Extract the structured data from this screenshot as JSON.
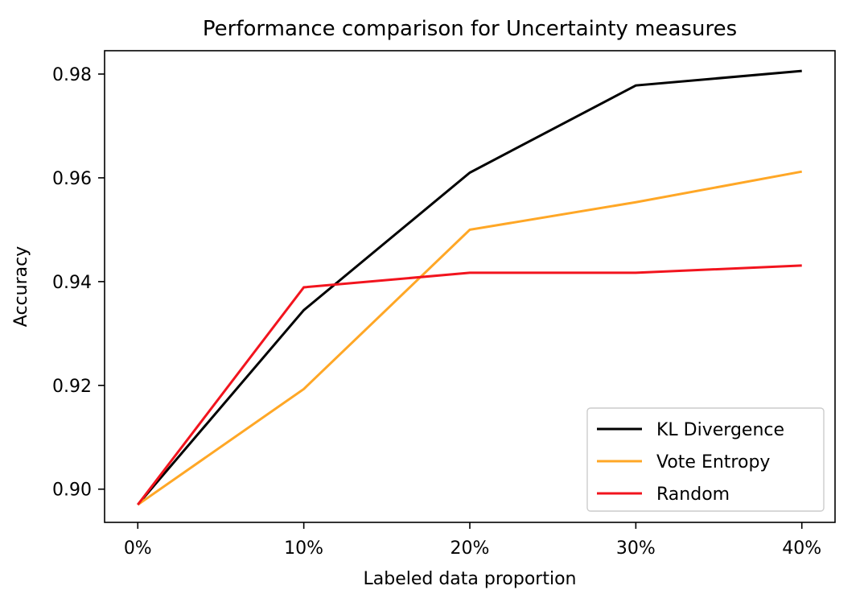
{
  "chart_data": {
    "type": "line",
    "title": "Performance comparison for Uncertainty measures",
    "xlabel": "Labeled data proportion",
    "ylabel": "Accuracy",
    "x": [
      "0%",
      "10%",
      "20%",
      "30%",
      "40%"
    ],
    "x_values": [
      0,
      10,
      20,
      30,
      40
    ],
    "xlim": [
      -2,
      42
    ],
    "ylim": [
      0.8936,
      0.9845
    ],
    "yticks": [
      0.9,
      0.92,
      0.94,
      0.96,
      0.98
    ],
    "ytick_labels": [
      "0.90",
      "0.92",
      "0.94",
      "0.96",
      "0.98"
    ],
    "grid": false,
    "legend_position": "bottom-right",
    "series": [
      {
        "name": "KL Divergence",
        "color": "#000000",
        "values": [
          0.897,
          0.9345,
          0.961,
          0.9778,
          0.9806
        ]
      },
      {
        "name": "Vote Entropy",
        "color": "#FFA726",
        "values": [
          0.897,
          0.9193,
          0.95,
          0.9553,
          0.9612
        ]
      },
      {
        "name": "Random",
        "color": "#F2141E",
        "values": [
          0.897,
          0.9389,
          0.9417,
          0.9417,
          0.9431
        ]
      }
    ]
  }
}
